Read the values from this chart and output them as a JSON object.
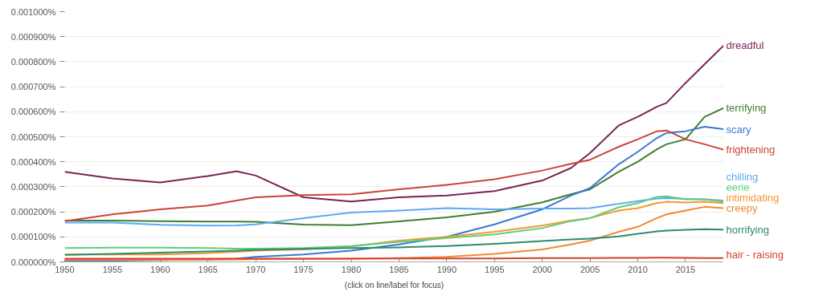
{
  "chart_data": {
    "type": "line",
    "x": [
      1950,
      1955,
      1960,
      1965,
      1968,
      1970,
      1975,
      1980,
      1985,
      1990,
      1995,
      2000,
      2003,
      2005,
      2008,
      2010,
      2012,
      2013,
      2015,
      2017,
      2019
    ],
    "series": [
      {
        "name": "dreadful",
        "color": "#7b2456",
        "values": [
          0.00036,
          0.000333,
          0.000317,
          0.000343,
          0.000362,
          0.000345,
          0.000258,
          0.000241,
          0.000258,
          0.000265,
          0.000283,
          0.000325,
          0.000375,
          0.000435,
          0.000545,
          0.00058,
          0.00062,
          0.000635,
          0.000715,
          0.00079,
          0.000865
        ]
      },
      {
        "name": "terrifying",
        "color": "#3d7f30",
        "values": [
          0.000165,
          0.000165,
          0.000163,
          0.000161,
          0.000161,
          0.00016,
          0.000149,
          0.000147,
          0.000162,
          0.000178,
          0.0002,
          0.000238,
          0.00027,
          0.00029,
          0.00036,
          0.0004,
          0.00045,
          0.00047,
          0.00049,
          0.00058,
          0.000615
        ]
      },
      {
        "name": "scary",
        "color": "#3a78d6",
        "values": [
          5e-06,
          5e-06,
          7e-06,
          1e-05,
          1.3e-05,
          2e-05,
          3e-05,
          4.5e-05,
          7e-05,
          0.0001,
          0.00015,
          0.00021,
          0.000265,
          0.000295,
          0.00039,
          0.00044,
          0.000495,
          0.000515,
          0.000522,
          0.00054,
          0.00053
        ]
      },
      {
        "name": "frightening",
        "color": "#cc4338",
        "values": [
          0.000163,
          0.00019,
          0.00021,
          0.000225,
          0.000245,
          0.000258,
          0.000267,
          0.00027,
          0.00029,
          0.000308,
          0.00033,
          0.000365,
          0.000392,
          0.000408,
          0.00046,
          0.00049,
          0.000522,
          0.000525,
          0.00049,
          0.00047,
          0.000448
        ]
      },
      {
        "name": "chilling",
        "color": "#5fa8f2",
        "values": [
          0.000157,
          0.000157,
          0.000148,
          0.000145,
          0.000146,
          0.00015,
          0.000175,
          0.000197,
          0.000205,
          0.000215,
          0.00021,
          0.000213,
          0.000213,
          0.000215,
          0.000232,
          0.000243,
          0.000253,
          0.000255,
          0.000252,
          0.00025,
          0.000245
        ]
      },
      {
        "name": "intimidating",
        "color": "#f4982f",
        "values": [
          3e-05,
          3e-05,
          3e-05,
          3.5e-05,
          4e-05,
          4.5e-05,
          5e-05,
          6.2e-05,
          8.5e-05,
          0.0001,
          0.00012,
          0.000145,
          0.000165,
          0.000175,
          0.000205,
          0.000215,
          0.000235,
          0.00024,
          0.000237,
          0.00024,
          0.000235
        ]
      },
      {
        "name": "eerie",
        "color": "#5ccf78",
        "values": [
          5.5e-05,
          5.7e-05,
          5.7e-05,
          5.5e-05,
          5.3e-05,
          5.3e-05,
          5.5e-05,
          6.3e-05,
          8e-05,
          9.5e-05,
          0.00011,
          0.000135,
          0.000163,
          0.000175,
          0.000218,
          0.000235,
          0.00026,
          0.000262,
          0.00025,
          0.00025,
          0.00024
        ]
      },
      {
        "name": "creepy",
        "color": "#ef8a33",
        "values": [
          8e-06,
          8e-06,
          8e-06,
          9e-06,
          1e-05,
          1.1e-05,
          1.2e-05,
          1.3e-05,
          1.5e-05,
          2e-05,
          3.2e-05,
          5e-05,
          7e-05,
          8.5e-05,
          0.00012,
          0.00014,
          0.000175,
          0.00019,
          0.000205,
          0.00022,
          0.000215
        ]
      },
      {
        "name": "horrifying",
        "color": "#2e8a6e",
        "values": [
          2.8e-05,
          3.2e-05,
          3.7e-05,
          4.2e-05,
          4.5e-05,
          4.8e-05,
          5.2e-05,
          5.5e-05,
          5.8e-05,
          6.3e-05,
          7.2e-05,
          8.3e-05,
          9e-05,
          9.3e-05,
          0.000102,
          0.000112,
          0.000122,
          0.000125,
          0.000128,
          0.000131,
          0.000129
        ]
      },
      {
        "name": "hair - raising",
        "color": "#d6402f",
        "values": [
          1.3e-05,
          1.3e-05,
          1.3e-05,
          1.3e-05,
          1.3e-05,
          1.3e-05,
          1.3e-05,
          1.3e-05,
          1.4e-05,
          1.4e-05,
          1.4e-05,
          1.5e-05,
          1.5e-05,
          1.5e-05,
          1.6e-05,
          1.6e-05,
          1.7e-05,
          1.7e-05,
          1.6e-05,
          1.5e-05,
          1.5e-05
        ]
      }
    ],
    "xlim": [
      1950,
      2019
    ],
    "xticks": [
      1950,
      1955,
      1960,
      1965,
      1970,
      1975,
      1980,
      1985,
      1990,
      1995,
      2000,
      2005,
      2010,
      2015
    ],
    "ylim": [
      0,
      0.001
    ],
    "yticks": [
      {
        "value": 0,
        "label": "0.000000%"
      },
      {
        "value": 0.0001,
        "label": "0.000100%"
      },
      {
        "value": 0.0002,
        "label": "0.000200%"
      },
      {
        "value": 0.0003,
        "label": "0.000300%"
      },
      {
        "value": 0.0004,
        "label": "0.000400%"
      },
      {
        "value": 0.0005,
        "label": "0.000500%"
      },
      {
        "value": 0.0006,
        "label": "0.000600%"
      },
      {
        "value": 0.0007,
        "label": "0.000700%"
      },
      {
        "value": 0.0008,
        "label": "0.000800%"
      },
      {
        "value": 0.0009,
        "label": "0.000900%"
      },
      {
        "value": 0.001,
        "label": "0.001000%"
      }
    ],
    "grid": "y",
    "annotations": [
      "(click on line/label for focus)"
    ]
  }
}
